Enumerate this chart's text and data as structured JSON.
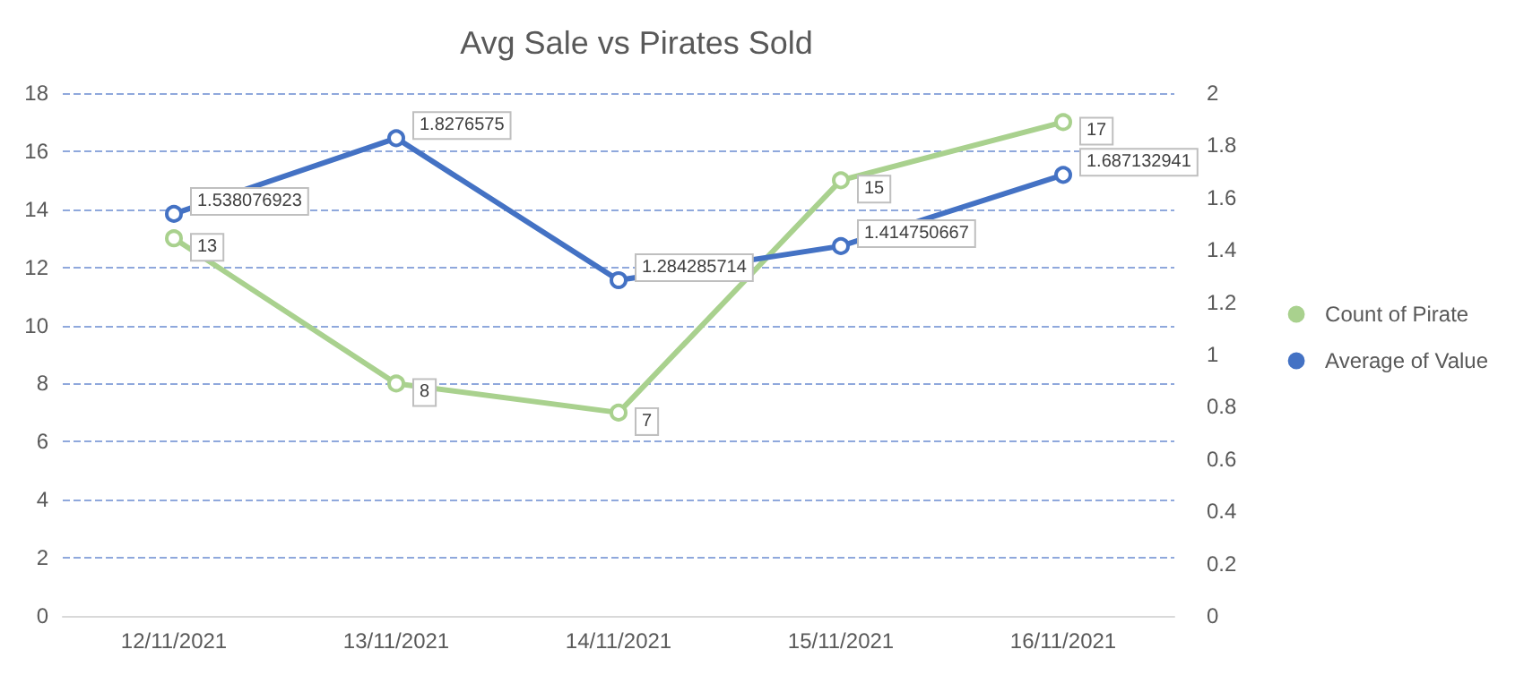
{
  "chart_data": {
    "type": "line",
    "title": "Avg Sale vs Pirates Sold",
    "categories": [
      "12/11/2021",
      "13/11/2021",
      "14/11/2021",
      "15/11/2021",
      "16/11/2021"
    ],
    "series": [
      {
        "name": "Count of Pirate",
        "color": "#a9d18e",
        "values": [
          13,
          8,
          7,
          15,
          17
        ]
      },
      {
        "name": "Average of Value",
        "color": "#4472c4",
        "axis": "y2",
        "values": [
          1.538076923,
          1.8276575,
          1.284285714,
          1.414750667,
          1.687132941
        ]
      }
    ],
    "ylim": [
      0,
      18
    ],
    "yticks": [
      0,
      2,
      4,
      6,
      8,
      10,
      12,
      14,
      16,
      18
    ],
    "y2lim": [
      0,
      2
    ],
    "y2ticks": [
      0,
      0.2,
      0.4,
      0.6,
      0.8,
      1,
      1.2,
      1.4,
      1.6,
      1.8,
      2
    ],
    "grid": "y",
    "legend": "right",
    "marker": "circle",
    "line_style": "solid",
    "data_labels": true
  }
}
